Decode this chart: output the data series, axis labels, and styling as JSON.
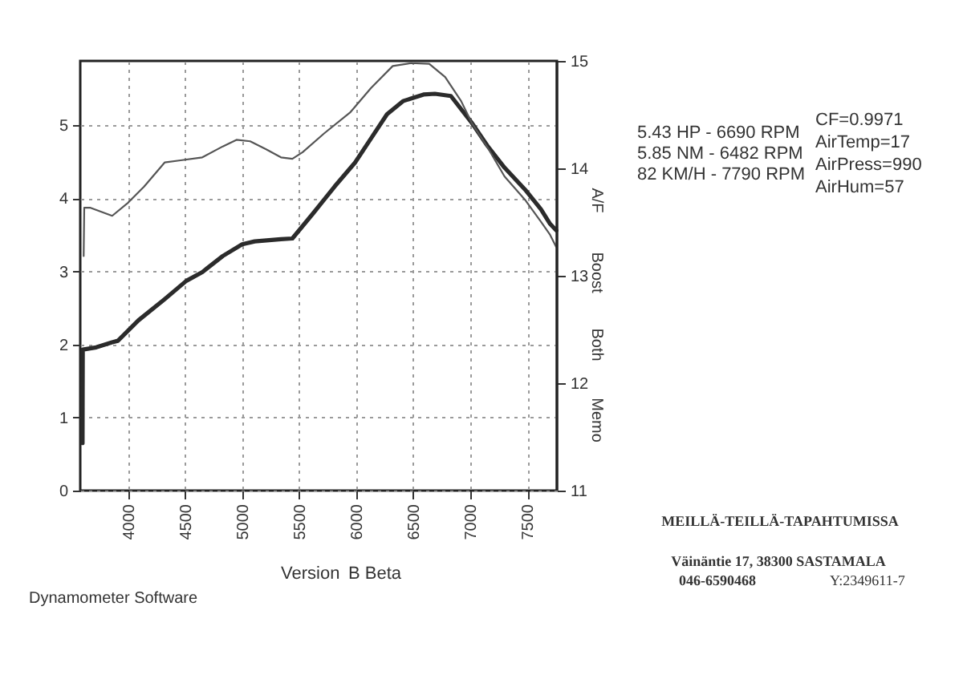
{
  "chart_data": {
    "type": "line",
    "xlim": [
      3580,
      7760
    ],
    "xticks": [
      4000,
      4500,
      5000,
      5500,
      6000,
      6500,
      7000,
      7500
    ],
    "ylim": [
      0,
      5.88
    ],
    "yticks": [
      0,
      1,
      2,
      3,
      4,
      5
    ],
    "y2lim": [
      11,
      15
    ],
    "y2ticks": [
      11,
      12,
      13,
      14,
      15
    ],
    "grid": true,
    "series": [
      {
        "color": "#2b2b2b",
        "x": [
          3600,
          3602,
          3720,
          3860,
          3910,
          4090,
          4320,
          4510,
          4650,
          4830,
          5000,
          5110,
          5340,
          5440,
          5620,
          5810,
          5990,
          6130,
          6270,
          6410,
          6590,
          6690,
          6830,
          7010,
          7150,
          7300,
          7480,
          7620,
          7700,
          7755
        ],
        "values": [
          0.65,
          1.93,
          1.96,
          2.03,
          2.05,
          2.33,
          2.62,
          2.87,
          2.99,
          3.21,
          3.37,
          3.41,
          3.44,
          3.45,
          3.79,
          4.16,
          4.49,
          4.82,
          5.15,
          5.33,
          5.42,
          5.43,
          5.4,
          5.04,
          4.72,
          4.42,
          4.12,
          3.85,
          3.65,
          3.56
        ]
      },
      {
        "color": "#555555",
        "x": [
          3610,
          3615,
          3670,
          3860,
          4000,
          4140,
          4320,
          4460,
          4650,
          4830,
          4950,
          5070,
          5210,
          5340,
          5440,
          5530,
          5720,
          5950,
          6130,
          6320,
          6482,
          6640,
          6780,
          6920,
          7010,
          7150,
          7300,
          7480,
          7620,
          7700,
          7755
        ],
        "values": [
          3.21,
          3.87,
          3.87,
          3.76,
          3.94,
          4.16,
          4.49,
          4.52,
          4.56,
          4.71,
          4.8,
          4.78,
          4.67,
          4.56,
          4.54,
          4.63,
          4.89,
          5.18,
          5.51,
          5.81,
          5.85,
          5.84,
          5.66,
          5.33,
          5.04,
          4.7,
          4.3,
          3.98,
          3.68,
          3.5,
          3.33
        ]
      }
    ],
    "annotations": [
      "5.43 HP - 6690 RPM",
      "5.85 NM - 6482 RPM",
      "82 KM/H - 7790 RPM",
      "CF=0.9971",
      "AirTemp=17",
      "AirPress=990",
      "AirHum=57",
      "A/F",
      "Boost",
      "Both",
      "Memo",
      "Version",
      "B Beta",
      "Dynamometer Software",
      "MEILLÄ-TEILLÄ-TAPAHTUMISSA",
      "Väinäntie 17, 38300 SASTAMALA",
      "046-6590468",
      "Y:2349611-7"
    ]
  }
}
